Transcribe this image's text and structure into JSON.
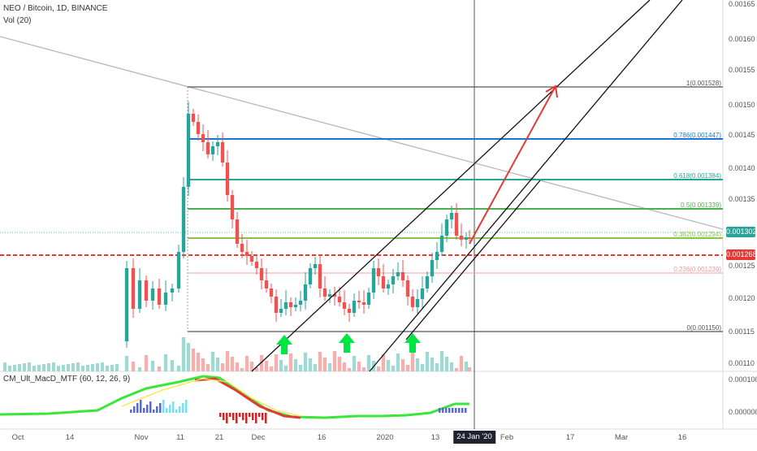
{
  "header": {
    "title": "NEO / Bitcoin, 1D, BINANCE",
    "volume_label": "Vol (20)"
  },
  "macd": {
    "label": "CM_Ult_MacD_MTF (60, 12, 26, 9)",
    "ticks": [
      "0.000100",
      "0.000000"
    ]
  },
  "price_axis": {
    "ticks": [
      "0.00165",
      "0.00160",
      "0.00155",
      "0.00150",
      "0.00145",
      "0.00140",
      "0.00135",
      "0.00130",
      "0.00125",
      "0.00120",
      "0.00115",
      "0.00110"
    ]
  },
  "time_axis": {
    "ticks": [
      "Oct",
      "14",
      "Nov",
      "11",
      "21",
      "Dec",
      "16",
      "2020",
      "13",
      "Feb",
      "17",
      "Mar",
      "16"
    ],
    "cursor_date": "24 Jan '20"
  },
  "price_tags": {
    "current": "0.001302",
    "line": "0.001268"
  },
  "fib_levels": [
    {
      "label": "1(0.001528)",
      "color": "#555555"
    },
    {
      "label": "0.786(0.001447)",
      "color": "#1976d2"
    },
    {
      "label": "0.618(0.001384)",
      "color": "#26a69a"
    },
    {
      "label": "0.5(0.001339)",
      "color": "#4caf50"
    },
    {
      "label": "0.382(0.001294)",
      "color": "#8bc34a"
    },
    {
      "label": "0.236(0.001239)",
      "color": "#ef9a9a"
    },
    {
      "label": "0(0.001150)",
      "color": "#555555"
    }
  ],
  "colors": {
    "up": "#26a69a",
    "down": "#ef5350",
    "target_arrow": "#e53935",
    "support_arrow": "#00e640"
  },
  "icons": [
    "arrow-up-icon",
    "arrow-up-icon",
    "arrow-up-icon",
    "target-arrow-icon"
  ]
}
